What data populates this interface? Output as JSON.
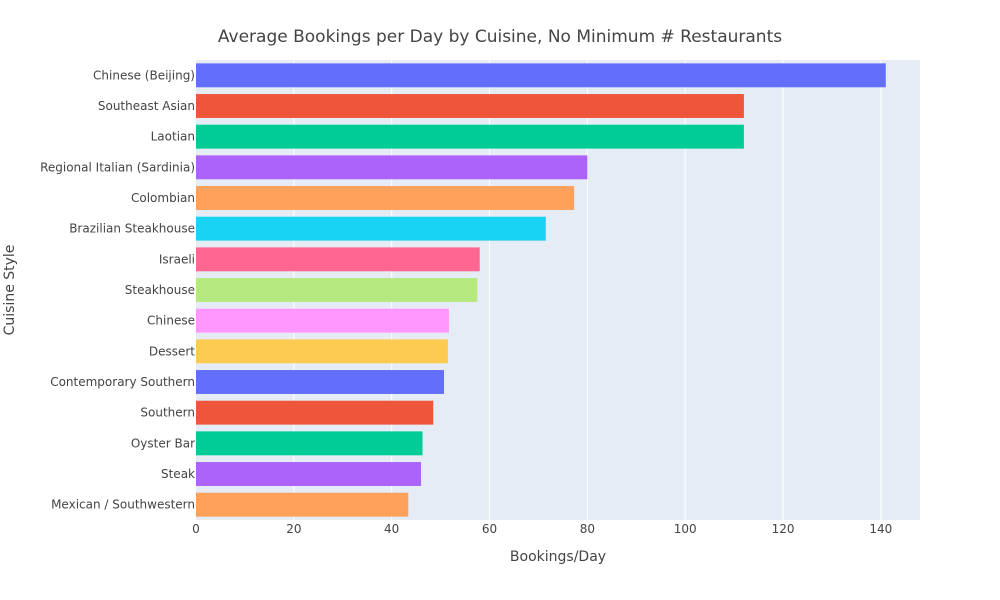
{
  "chart_data": {
    "type": "bar",
    "orientation": "horizontal",
    "title": "Average Bookings per Day by Cuisine, No Minimum # Restaurants",
    "xlabel": "Bookings/Day",
    "ylabel": "Cuisine Style",
    "xlim": [
      0,
      148
    ],
    "xticks": [
      "0",
      "20",
      "40",
      "60",
      "80",
      "100",
      "120",
      "140"
    ],
    "xtick_values": [
      0,
      20,
      40,
      60,
      80,
      100,
      120,
      140
    ],
    "grid": true,
    "background_color": "#E5ECF6",
    "categories": [
      "Chinese (Beijing)",
      "Southeast Asian",
      "Laotian",
      "Regional Italian (Sardinia)",
      "Colombian",
      "Brazilian Steakhouse",
      "Israeli",
      "Steakhouse",
      "Chinese",
      "Dessert",
      "Contemporary Southern",
      "Southern",
      "Oyster Bar",
      "Steak",
      "Mexican / Southwestern"
    ],
    "values": [
      141,
      112,
      112,
      80,
      77.3,
      71.5,
      58,
      57.5,
      51.7,
      51.5,
      50.7,
      48.5,
      46.3,
      46,
      43.4
    ],
    "colors": [
      "#636EFA",
      "#EF553B",
      "#00CC96",
      "#AB63FA",
      "#FFA15A",
      "#19D3F3",
      "#FF6692",
      "#B6E880",
      "#FF97FF",
      "#FECB52",
      "#636EFA",
      "#EF553B",
      "#00CC96",
      "#AB63FA",
      "#FFA15A"
    ]
  }
}
